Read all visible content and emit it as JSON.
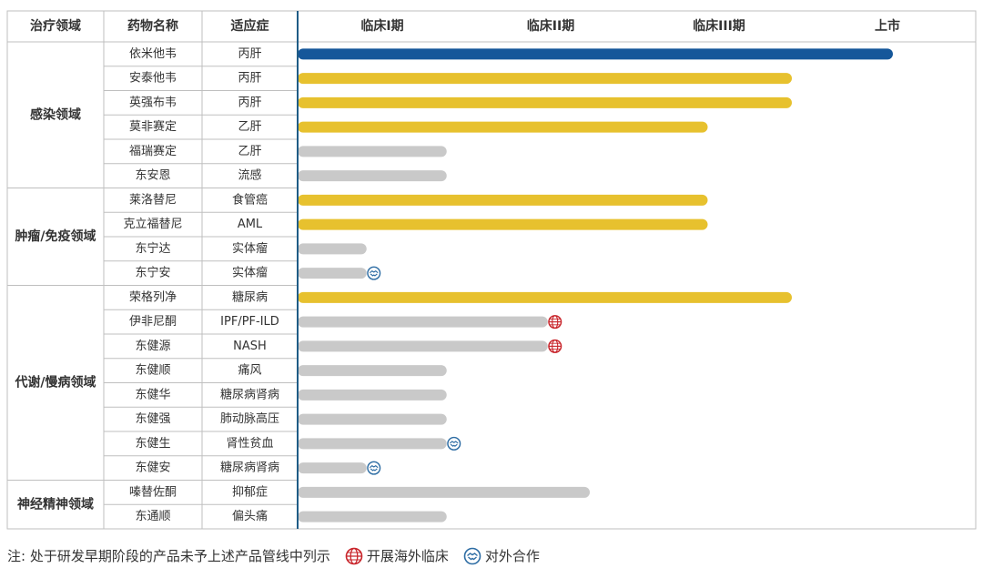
{
  "colors": {
    "launched": "#15579a",
    "phase3_or_beyond": "#e7c12e",
    "early_phase": "#c9c9c9",
    "grid": "#bfbfbf",
    "axis": "#1f5c86",
    "overseas_icon": "#c8242a",
    "partner_icon": "#2e6da4"
  },
  "headers": {
    "area": "治疗领域",
    "drug": "药物名称",
    "indication": "适应症"
  },
  "chart_data": {
    "type": "bar",
    "stages": [
      "临床I期",
      "临床II期",
      "临床III期",
      "上市"
    ],
    "areas": [
      {
        "name": "感染领域",
        "drugs": [
          {
            "name": "依米他韦",
            "indication": "丙肝",
            "progress": 4.0,
            "status": "launched",
            "flag": ""
          },
          {
            "name": "安泰他韦",
            "indication": "丙肝",
            "progress": 3.4,
            "status": "phase3_or_beyond",
            "flag": ""
          },
          {
            "name": "英强布韦",
            "indication": "丙肝",
            "progress": 3.4,
            "status": "phase3_or_beyond",
            "flag": ""
          },
          {
            "name": "莫非赛定",
            "indication": "乙肝",
            "progress": 2.9,
            "status": "phase3_or_beyond",
            "flag": ""
          },
          {
            "name": "福瑞赛定",
            "indication": "乙肝",
            "progress": 1.35,
            "status": "early_phase",
            "flag": ""
          },
          {
            "name": "东安恩",
            "indication": "流感",
            "progress": 1.35,
            "status": "early_phase",
            "flag": ""
          }
        ]
      },
      {
        "name": "肿瘤/免疫领域",
        "drugs": [
          {
            "name": "莱洛替尼",
            "indication": "食管癌",
            "progress": 2.9,
            "status": "phase3_or_beyond",
            "flag": ""
          },
          {
            "name": "克立福替尼",
            "indication": "AML",
            "progress": 2.9,
            "status": "phase3_or_beyond",
            "flag": ""
          },
          {
            "name": "东宁达",
            "indication": "实体瘤",
            "progress": 0.75,
            "status": "early_phase",
            "flag": ""
          },
          {
            "name": "东宁安",
            "indication": "实体瘤",
            "progress": 0.75,
            "status": "early_phase",
            "flag": "partner"
          }
        ]
      },
      {
        "name": "代谢/慢病领域",
        "drugs": [
          {
            "name": "荣格列净",
            "indication": "糖尿病",
            "progress": 3.4,
            "status": "phase3_or_beyond",
            "flag": ""
          },
          {
            "name": "伊非尼酮",
            "indication": "IPF/PF-ILD",
            "progress": 1.95,
            "status": "early_phase",
            "flag": "overseas"
          },
          {
            "name": "东健源",
            "indication": "NASH",
            "progress": 1.95,
            "status": "early_phase",
            "flag": "overseas"
          },
          {
            "name": "东健顺",
            "indication": "痛风",
            "progress": 1.35,
            "status": "early_phase",
            "flag": ""
          },
          {
            "name": "东健华",
            "indication": "糖尿病肾病",
            "progress": 1.35,
            "status": "early_phase",
            "flag": ""
          },
          {
            "name": "东健强",
            "indication": "肺动脉高压",
            "progress": 1.35,
            "status": "early_phase",
            "flag": ""
          },
          {
            "name": "东健生",
            "indication": "肾性贫血",
            "progress": 1.35,
            "status": "early_phase",
            "flag": "partner"
          },
          {
            "name": "东健安",
            "indication": "糖尿病肾病",
            "progress": 0.75,
            "status": "early_phase",
            "flag": "partner"
          }
        ]
      },
      {
        "name": "神经精神领域",
        "drugs": [
          {
            "name": "嗪替佐酮",
            "indication": "抑郁症",
            "progress": 2.2,
            "status": "early_phase",
            "flag": ""
          },
          {
            "name": "东通顺",
            "indication": "偏头痛",
            "progress": 1.35,
            "status": "early_phase",
            "flag": ""
          }
        ]
      }
    ]
  },
  "footer": {
    "note": "注: 处于研发早期阶段的产品未予上述产品管线中列示",
    "legend_overseas": "开展海外临床",
    "legend_partner": "对外合作"
  }
}
